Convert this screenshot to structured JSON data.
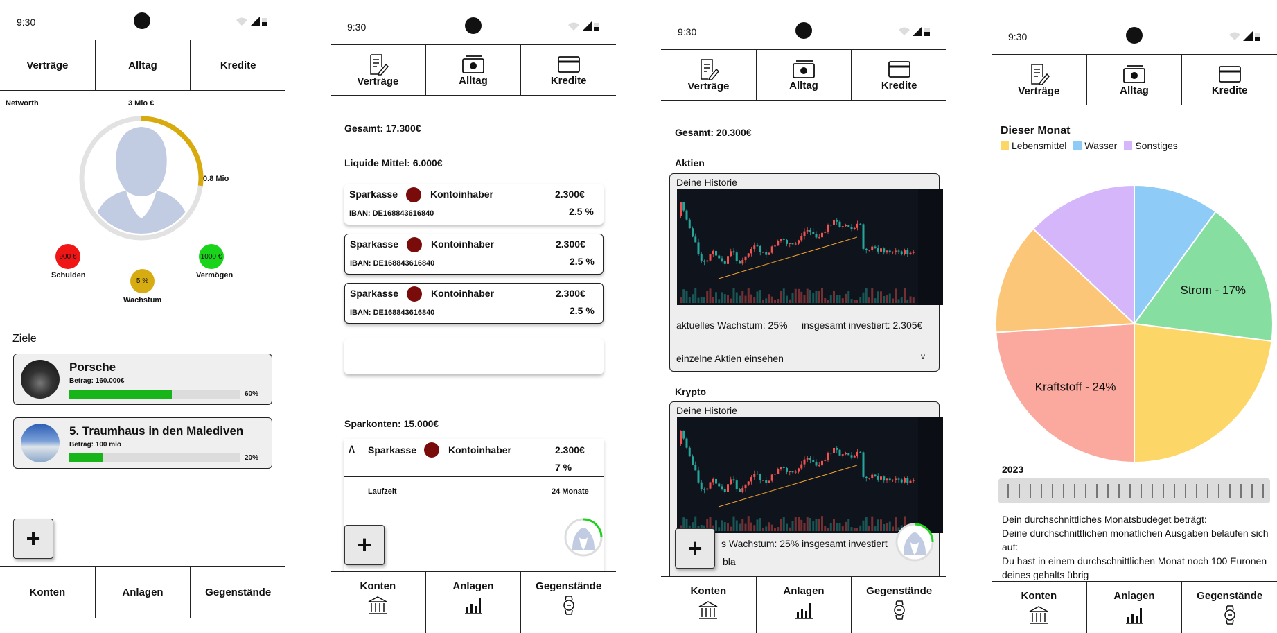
{
  "status": {
    "time": "9:30"
  },
  "tabs": [
    "Verträge",
    "Alltag",
    "Kredite"
  ],
  "bottom_nav": [
    "Konten",
    "Anlagen",
    "Gegenstände"
  ],
  "screen1": {
    "networth_label": "Networth",
    "goal_value": "3 Mio €",
    "current_value": "0.8 Mio",
    "networth_progress_fraction": 0.27,
    "schulden": {
      "value": "900 €",
      "label": "Schulden"
    },
    "vermoegen": {
      "value": "1000 €",
      "label": "Vermögen"
    },
    "wachstum": {
      "value": "5 %",
      "label": "Wachstum"
    },
    "goals_title": "Ziele",
    "goals": [
      {
        "title": "Porsche",
        "amount": "Betrag: 160.000€",
        "percent": "60%",
        "progress": 0.6
      },
      {
        "title": "5.  Traumhaus in den Malediven",
        "amount": "Betrag: 100 mio",
        "percent": "20%",
        "progress": 0.2
      }
    ],
    "plus": "+"
  },
  "screen2": {
    "total": "Gesamt: 17.300€",
    "liquid_title": "Liquide Mittel: 6.000€",
    "accounts": [
      {
        "bank": "Sparkasse",
        "holder": "Kontoinhaber",
        "amount": "2.300€",
        "iban": "IBAN: DE168843616840",
        "rate": "2.5 %"
      },
      {
        "bank": "Sparkasse",
        "holder": "Kontoinhaber",
        "amount": "2.300€",
        "iban": "IBAN: DE168843616840",
        "rate": "2.5 %"
      },
      {
        "bank": "Sparkasse",
        "holder": "Kontoinhaber",
        "amount": "2.300€",
        "iban": "IBAN: DE168843616840",
        "rate": "2.5 %"
      }
    ],
    "savings_title": "Sparkonten: 15.000€",
    "savings": {
      "bank": "Sparkasse",
      "holder": "Kontoinhaber",
      "amount": "2.300€",
      "rate": "7 %",
      "term_label": "Laufzeit",
      "term_value": "24 Monate",
      "collapse_icon": "∧"
    },
    "plus": "+"
  },
  "screen3": {
    "total": "Gesamt: 20.300€",
    "stocks_title": "Aktien",
    "history_label": "Deine Historie",
    "growth": "aktuelles Wachstum: 25%",
    "invested": "insgesamt investiert: 2.305€",
    "single_stocks": "einzelne Aktien einsehen",
    "expand_icon": "v",
    "crypto_title": "Krypto",
    "crypto_growth_partial": "s Wachstum: 25%",
    "crypto_invested_partial": "insgesamt investiert",
    "crypto_footer_partial": "bla",
    "plus": "+"
  },
  "screen4": {
    "month_title": "Dieser Monat",
    "legend": [
      {
        "label": "Lebensmittel",
        "color": "#fcd667"
      },
      {
        "label": "Wasser",
        "color": "#8ecbf7"
      },
      {
        "label": "Sonstiges",
        "color": "#d5b6fa"
      }
    ],
    "year": "2023",
    "text_lines": [
      "Dein durchschnittliches Monatsbudeget beträgt:",
      "Deine durchschnittlichen monatlichen Ausgaben belaufen sich auf:",
      "Du hast in einem durchschnittlichen Monat noch 100 Euronen deines gehalts übrig"
    ]
  },
  "chart_data": {
    "type": "pie",
    "title": "Dieser Monat",
    "slices": [
      {
        "label": "Wasser",
        "value": 10,
        "color": "#8ecbf7"
      },
      {
        "label": "Strom - 17%",
        "value": 17,
        "color": "#86dfa0"
      },
      {
        "label": "Lebensmittel",
        "value": 23,
        "color": "#fcd667"
      },
      {
        "label": "Kraftstoff - 24%",
        "value": 24,
        "color": "#fba99e"
      },
      {
        "label": "",
        "value": 13,
        "color": "#fcc679"
      },
      {
        "label": "Sonstiges",
        "value": 13,
        "color": "#d5b6fa"
      }
    ],
    "visible_labels": [
      "Strom - 17%",
      "Kraftstoff - 24%"
    ],
    "legend_placement": "top-left"
  },
  "icons": {
    "contract": "contract-icon",
    "money": "money-icon",
    "card": "credit-card-icon",
    "bank": "bank-icon",
    "bar": "bar-chart-icon",
    "watch": "watch-icon"
  }
}
